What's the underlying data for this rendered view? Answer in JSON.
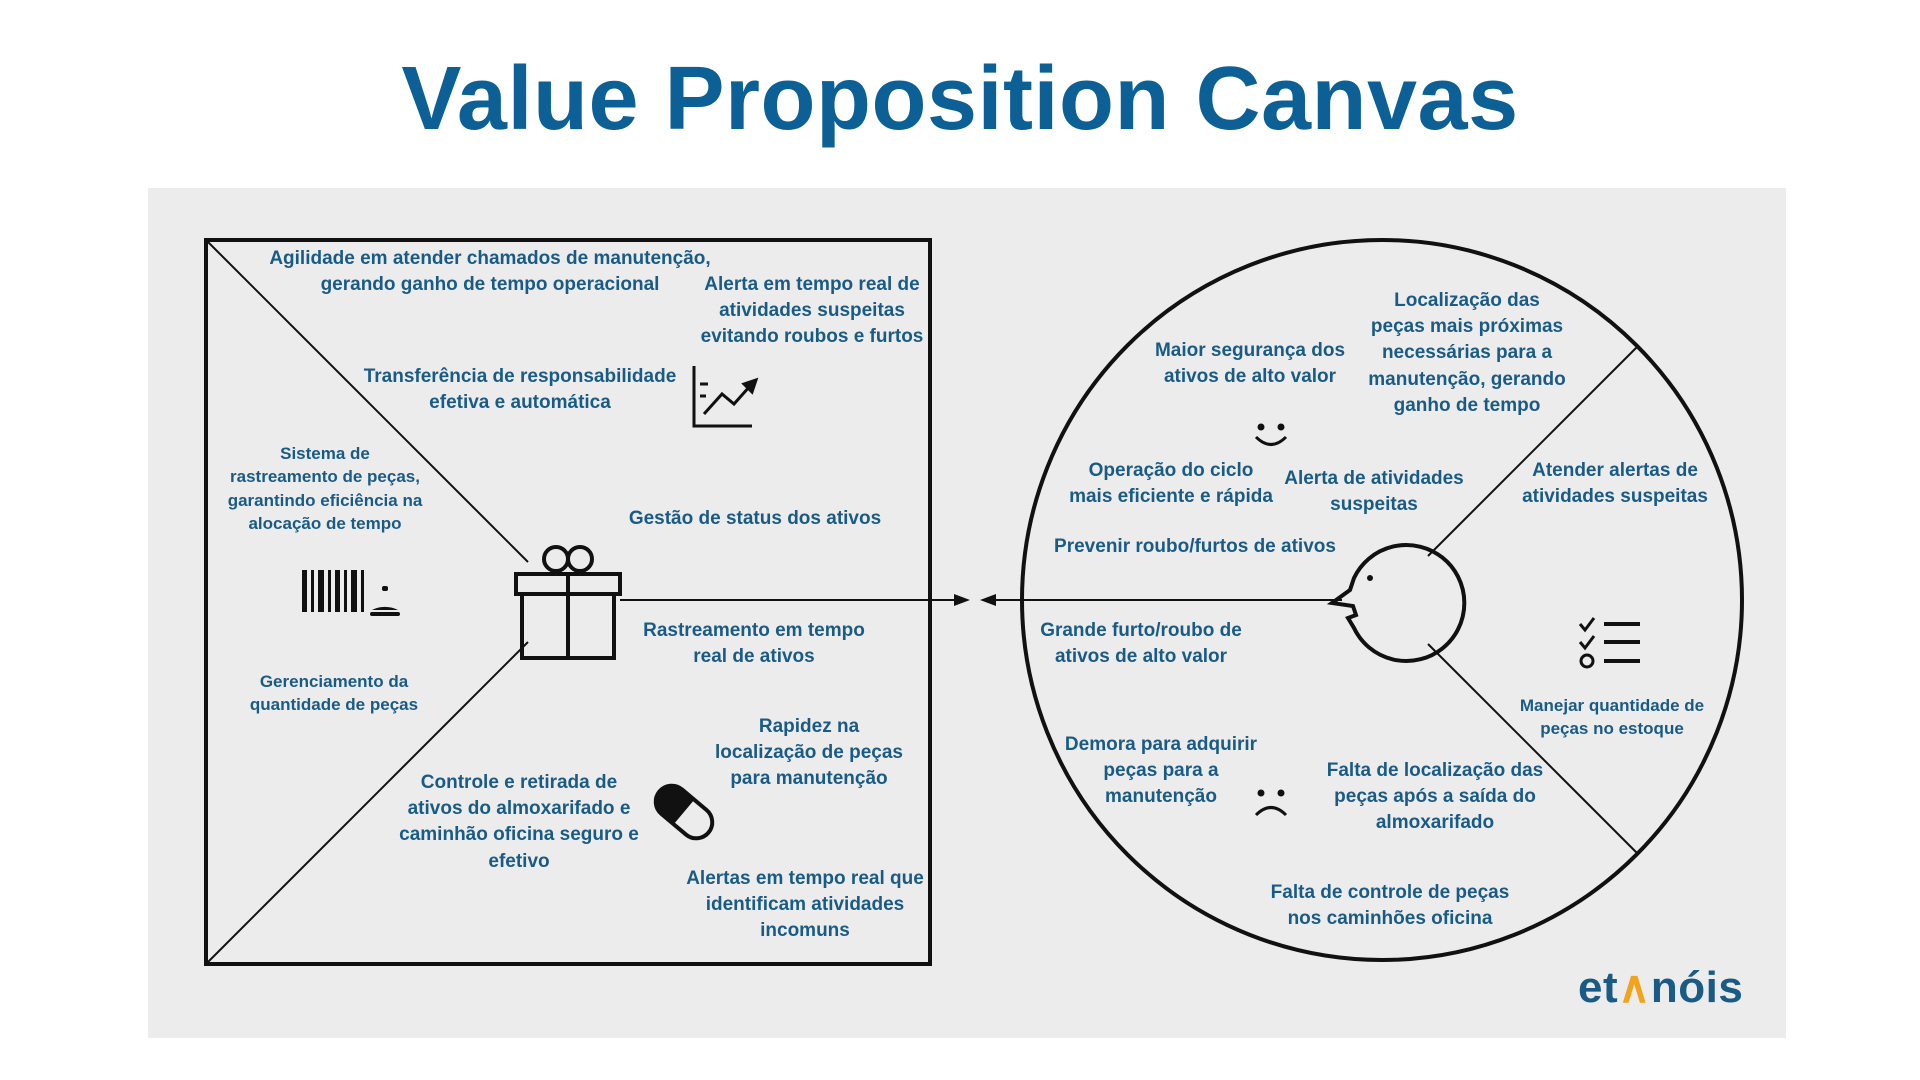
{
  "title": "Value Proposition Canvas",
  "colors": {
    "title": "#0d6096",
    "text": "#1a5b86",
    "panel": "#ececec",
    "logo_accent": "#f2a31b"
  },
  "value_map": {
    "gain_creators": [
      "Agilidade em atender chamados de manutenção,\ngerando ganho de tempo operacional",
      "Alerta em tempo real de\natividades suspeitas\nevitando roubos e furtos",
      "Transferência de responsabilidade\nefetiva e automática",
      "Gestão de status dos ativos"
    ],
    "products_services": [
      "Sistema de\nrastreamento de peças,\ngarantindo eficiência na\nalocação de tempo",
      "Gerenciamento da\nquantidade de peças"
    ],
    "pain_relievers": [
      "Rastreamento em tempo\nreal de ativos",
      "Rapidez na\nlocalização de peças\npara manutenção",
      "Controle e retirada de\nativos do almoxarifado e\ncaminhão oficina seguro e\nefetivo",
      "Alertas em tempo real que\nidentificam atividades\nincomuns"
    ],
    "icons": [
      "growth-chart-icon",
      "barcode-icon",
      "service-bell-icon",
      "gift-icon",
      "pill-icon"
    ]
  },
  "customer_profile": {
    "gains": [
      "Maior segurança dos\nativos de alto valor",
      "Operação do ciclo\nmais eficiente e rápida",
      "Alerta de atividades\nsuspeitas",
      "Prevenir roubo/furtos de ativos",
      "Localização das\npeças mais próximas\nnecessárias para a\nmanutenção, gerando\nganho de tempo"
    ],
    "jobs": [
      "Atender alertas de\natividades suspeitas",
      "Manejar quantidade de\npeças no estoque"
    ],
    "pains": [
      "Grande furto/roubo de\nativos de alto valor",
      "Demora para adquirir\npeças para a\nmanutenção",
      "Falta de localização das\npeças após a saída do\nalmoxarifado",
      "Falta de controle de peças\nnos caminhões oficina"
    ],
    "icons": [
      "smile-icon",
      "frown-icon",
      "face-profile-icon",
      "checklist-icon"
    ]
  },
  "logo": {
    "part1": "et",
    "part2": "nóis"
  }
}
